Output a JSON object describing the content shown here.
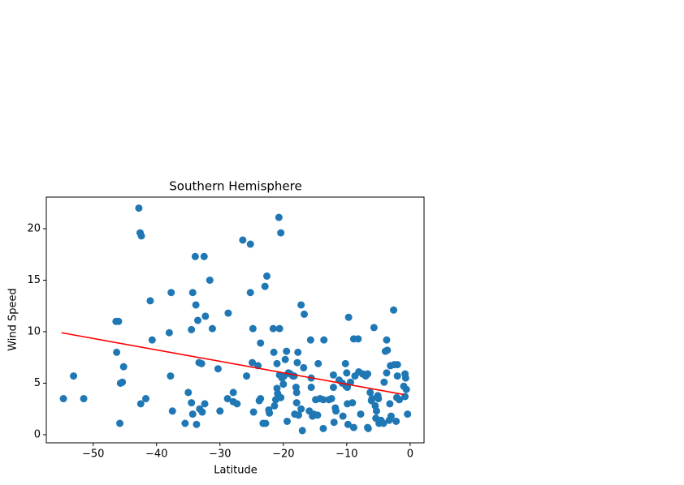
{
  "chart_data": {
    "type": "scatter",
    "title": "Southern Hemisphere",
    "xlabel": "Latitude",
    "ylabel": "Wind Speed",
    "xlim": [
      -57.4,
      2.2
    ],
    "ylim": [
      -0.79,
      23.07
    ],
    "xticks": [
      {
        "value": -50,
        "label": "−50"
      },
      {
        "value": -40,
        "label": "−40"
      },
      {
        "value": -30,
        "label": "−30"
      },
      {
        "value": -20,
        "label": "−20"
      },
      {
        "value": -10,
        "label": "−10"
      },
      0
    ],
    "yticks": [
      0,
      5,
      10,
      15,
      20
    ],
    "series": [
      {
        "mode": "markers",
        "color": "#1f77b4",
        "x": [
          -54.7,
          -53.1,
          -51.5,
          -46.4,
          -46.0,
          -46.3,
          -45.7,
          -45.4,
          -45.2,
          -45.8,
          -42.8,
          -42.6,
          -42.4,
          -42.5,
          -41.7,
          -41.0,
          -40.7,
          -38.0,
          -37.7,
          -37.8,
          -37.5,
          -35.5,
          -35.0,
          -34.5,
          -34.5,
          -34.3,
          -34.3,
          -33.9,
          -33.8,
          -33.7,
          -33.5,
          -33.3,
          -33.2,
          -32.9,
          -32.8,
          -32.5,
          -32.3,
          -32.4,
          -31.6,
          -31.2,
          -30.3,
          -30.0,
          -28.7,
          -28.8,
          -27.9,
          -27.9,
          -27.3,
          -26.4,
          -25.8,
          -25.2,
          -25.2,
          -24.9,
          -24.8,
          -24.7,
          -24.0,
          -23.8,
          -23.6,
          -23.6,
          -23.2,
          -22.9,
          -22.8,
          -22.6,
          -22.3,
          -22.2,
          -21.6,
          -21.5,
          -21.4,
          -21.2,
          -21.0,
          -21.0,
          -20.9,
          -20.7,
          -20.6,
          -20.6,
          -20.4,
          -20.4,
          -20.2,
          -20.0,
          -19.9,
          -19.7,
          -19.5,
          -19.4,
          -19.2,
          -18.9,
          -18.5,
          -18.3,
          -18.2,
          -18.0,
          -17.9,
          -17.9,
          -17.8,
          -17.7,
          -17.6,
          -17.2,
          -17.2,
          -17.0,
          -16.8,
          -16.7,
          -15.9,
          -15.7,
          -15.6,
          -15.6,
          -15.4,
          -15.2,
          -14.9,
          -14.6,
          -14.5,
          -14.2,
          -13.7,
          -13.7,
          -13.6,
          -12.8,
          -12.4,
          -12.1,
          -12.1,
          -12.0,
          -11.8,
          -11.7,
          -11.2,
          -10.7,
          -10.6,
          -10.1,
          -10.2,
          -10.0,
          -9.9,
          -9.9,
          -9.8,
          -9.7,
          -9.4,
          -9.1,
          -8.9,
          -8.9,
          -8.7,
          -8.2,
          -8.1,
          -7.8,
          -7.5,
          -7.0,
          -6.7,
          -6.7,
          -6.6,
          -6.3,
          -6.1,
          -6.0,
          -5.7,
          -5.5,
          -5.4,
          -5.3,
          -5.1,
          -5.0,
          -4.9,
          -4.6,
          -4.2,
          -4.1,
          -3.9,
          -3.7,
          -3.7,
          -3.6,
          -3.3,
          -3.2,
          -3.1,
          -3.0,
          -2.6,
          -2.5,
          -2.2,
          -2.1,
          -2.0,
          -2.0,
          -1.7,
          -1.0,
          -0.8,
          -0.8,
          -0.7,
          -0.6,
          -0.4
        ],
        "values": [
          3.5,
          5.7,
          3.5,
          11.0,
          11.0,
          8.0,
          5.0,
          5.1,
          6.6,
          1.1,
          22.0,
          19.6,
          19.3,
          3.0,
          3.5,
          13.0,
          9.2,
          9.9,
          13.8,
          5.7,
          2.3,
          1.1,
          4.1,
          3.1,
          10.2,
          13.8,
          2.0,
          17.3,
          12.6,
          1.0,
          11.1,
          7.0,
          2.5,
          6.9,
          2.2,
          17.3,
          11.5,
          3.0,
          15.0,
          10.3,
          6.4,
          2.3,
          11.8,
          3.5,
          4.1,
          3.2,
          3.0,
          18.9,
          5.7,
          18.5,
          13.8,
          7.0,
          10.3,
          2.2,
          6.7,
          3.3,
          3.5,
          8.9,
          1.1,
          14.4,
          1.1,
          15.4,
          2.4,
          2.1,
          10.3,
          8.0,
          2.8,
          3.4,
          6.9,
          4.5,
          4.0,
          21.1,
          10.3,
          5.8,
          19.6,
          3.6,
          5.5,
          4.9,
          5.7,
          7.3,
          8.1,
          1.3,
          6.0,
          5.9,
          5.7,
          5.7,
          2.0,
          4.6,
          4.1,
          3.1,
          7.0,
          8.0,
          1.9,
          2.5,
          12.6,
          0.4,
          6.5,
          11.7,
          2.3,
          9.2,
          5.5,
          4.6,
          1.8,
          2.0,
          3.4,
          1.9,
          6.9,
          3.5,
          3.4,
          0.6,
          9.2,
          3.4,
          3.5,
          5.8,
          4.6,
          1.2,
          2.6,
          2.3,
          5.3,
          5.0,
          1.8,
          4.7,
          6.9,
          6.0,
          4.6,
          3.0,
          1.0,
          11.4,
          5.1,
          3.1,
          9.3,
          0.7,
          5.7,
          9.3,
          6.1,
          2.0,
          5.9,
          5.7,
          5.9,
          0.7,
          0.6,
          4.1,
          3.3,
          3.5,
          10.4,
          2.8,
          1.6,
          2.3,
          3.8,
          3.5,
          1.1,
          1.4,
          1.1,
          5.1,
          8.1,
          6.0,
          9.2,
          8.2,
          1.4,
          3.0,
          6.7,
          1.8,
          12.1,
          6.8,
          1.3,
          3.6,
          5.7,
          6.8,
          3.4,
          4.7,
          3.7,
          5.9,
          5.5,
          4.4,
          2.0
        ]
      },
      {
        "mode": "lines",
        "color": "#ff0000",
        "x": [
          -55,
          -1
        ],
        "values": [
          9.9,
          3.9
        ]
      }
    ]
  }
}
